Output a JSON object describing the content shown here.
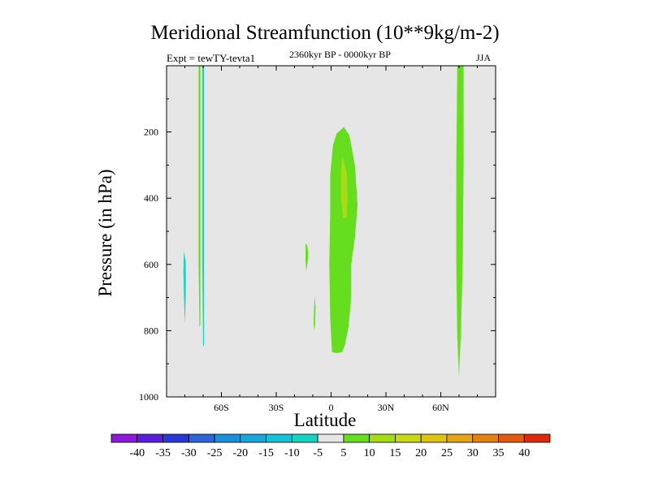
{
  "chart_data": {
    "type": "heatmap",
    "title": "Meridional Streamfunction (10**9kg/m-2)",
    "subtitle": "2360kyr BP - 0000kyr BP",
    "experiment_label": "Expt = tewTY-tevta1",
    "season": "JJA",
    "xlabel": "Latitude",
    "ylabel": "Pressure (in hPa)",
    "xlim": [
      -90,
      90
    ],
    "ylim": [
      0,
      1000
    ],
    "y_inverted": true,
    "x_ticks": [
      -60,
      -30,
      0,
      30,
      60
    ],
    "x_tick_labels": [
      "60S",
      "30S",
      "0",
      "30N",
      "60N"
    ],
    "y_ticks": [
      200,
      400,
      600,
      800,
      1000
    ],
    "y_tick_labels": [
      "200",
      "400",
      "600",
      "800",
      "1000"
    ],
    "background_interval": [
      -5,
      5
    ],
    "colorbar": {
      "levels": [
        -40,
        -35,
        -30,
        -25,
        -20,
        -15,
        -10,
        -5,
        5,
        10,
        15,
        20,
        25,
        30,
        35,
        40
      ],
      "labels": [
        "-40",
        "-35",
        "-30",
        "-25",
        "-20",
        "-15",
        "-10",
        "-5",
        "5",
        "10",
        "15",
        "20",
        "25",
        "30",
        "35",
        "40"
      ],
      "colors": [
        "#8a19d8",
        "#5b1ed8",
        "#2b38d6",
        "#2e63d9",
        "#1c8fd9",
        "#17a7d9",
        "#16c1d8",
        "#18d4bf",
        "#e6e6e6",
        "#66dd1e",
        "#a6dc16",
        "#c8d71a",
        "#dcc416",
        "#e2a516",
        "#e28214",
        "#e25a12",
        "#dc2a10"
      ]
    },
    "contour_regions": [
      {
        "name": "equatorial-positive-cell",
        "value_range": [
          5,
          10
        ],
        "polygon": [
          [
            0.5,
            865
          ],
          [
            -0.5,
            760
          ],
          [
            -1,
            600
          ],
          [
            -0.5,
            440
          ],
          [
            -0.5,
            330
          ],
          [
            1,
            240
          ],
          [
            3,
            205
          ],
          [
            7,
            185
          ],
          [
            10,
            210
          ],
          [
            13,
            300
          ],
          [
            14.5,
            420
          ],
          [
            13,
            520
          ],
          [
            11,
            600
          ],
          [
            11,
            700
          ],
          [
            9.5,
            790
          ],
          [
            7.5,
            845
          ],
          [
            6,
            865
          ],
          [
            3,
            868
          ]
        ]
      },
      {
        "name": "equatorial-core",
        "value_range": [
          10,
          15
        ],
        "polygon": [
          [
            6,
            270
          ],
          [
            8.5,
            320
          ],
          [
            9,
            400
          ],
          [
            8.5,
            460
          ],
          [
            6.5,
            460
          ],
          [
            5.5,
            400
          ],
          [
            5.5,
            320
          ]
        ]
      },
      {
        "name": "north-polar-positive-band",
        "value_range": [
          5,
          10
        ],
        "polygon": [
          [
            69,
            0
          ],
          [
            72.5,
            0
          ],
          [
            72.5,
            300
          ],
          [
            72,
            600
          ],
          [
            71,
            800
          ],
          [
            70,
            940
          ],
          [
            69,
            820
          ],
          [
            68.5,
            600
          ],
          [
            68.5,
            300
          ]
        ]
      },
      {
        "name": "south-polar-positive-strip",
        "value_range": [
          5,
          10
        ],
        "polygon": [
          [
            -72.5,
            0
          ],
          [
            -71.5,
            0
          ],
          [
            -71.5,
            300
          ],
          [
            -71.5,
            600
          ],
          [
            -71.5,
            780
          ],
          [
            -72,
            790
          ],
          [
            -72.5,
            600
          ],
          [
            -72.5,
            300
          ]
        ]
      },
      {
        "name": "south-polar-negative-strip",
        "value_range": [
          -10,
          -5
        ],
        "polygon": [
          [
            -70.5,
            0
          ],
          [
            -69.5,
            0
          ],
          [
            -69.5,
            300
          ],
          [
            -69.5,
            600
          ],
          [
            -69.5,
            840
          ],
          [
            -70,
            850
          ],
          [
            -70.5,
            600
          ],
          [
            -70.5,
            300
          ]
        ]
      },
      {
        "name": "south-negative-patch",
        "value_range": [
          -10,
          -5
        ],
        "polygon": [
          [
            -80.5,
            560
          ],
          [
            -79.5,
            590
          ],
          [
            -79.5,
            700
          ],
          [
            -80,
            780
          ],
          [
            -80.5,
            700
          ],
          [
            -80.8,
            620
          ]
        ]
      },
      {
        "name": "subtropical-patch-a",
        "value_range": [
          5,
          10
        ],
        "polygon": [
          [
            -14,
            535
          ],
          [
            -13,
            545
          ],
          [
            -12.5,
            570
          ],
          [
            -13,
            600
          ],
          [
            -13.5,
            620
          ],
          [
            -14,
            590
          ]
        ]
      },
      {
        "name": "subtropical-patch-b",
        "value_range": [
          5,
          10
        ],
        "polygon": [
          [
            -9,
            695
          ],
          [
            -8.5,
            730
          ],
          [
            -8.8,
            780
          ],
          [
            -9.2,
            800
          ],
          [
            -9.6,
            780
          ],
          [
            -9.3,
            730
          ]
        ]
      }
    ]
  }
}
